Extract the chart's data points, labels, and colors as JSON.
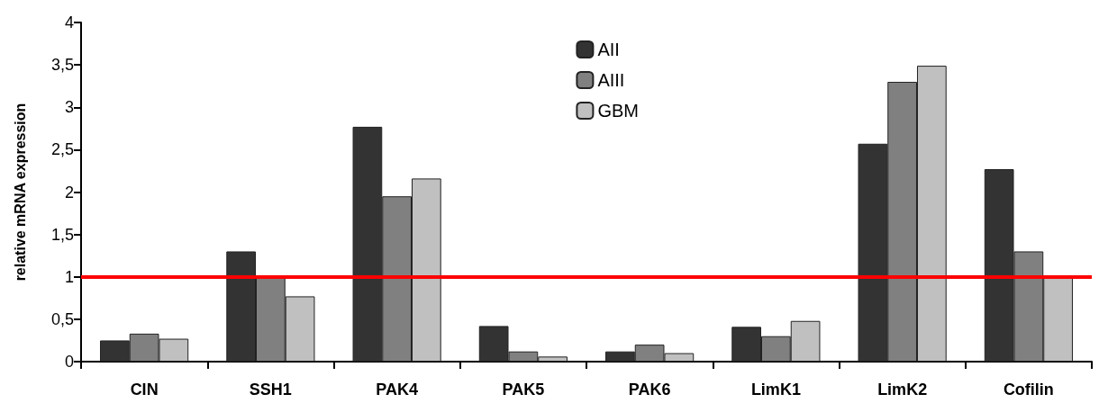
{
  "chart_data": {
    "type": "bar",
    "ylabel": "relative mRNA expression",
    "categories": [
      "CIN",
      "SSH1",
      "PAK4",
      "PAK5",
      "PAK6",
      "LimK1",
      "LimK2",
      "Cofilin"
    ],
    "series": [
      {
        "name": "AII",
        "color": "#333333",
        "values": [
          0.25,
          1.3,
          2.77,
          0.42,
          0.12,
          0.41,
          2.57,
          2.27
        ]
      },
      {
        "name": "AIII",
        "color": "#808080",
        "values": [
          0.33,
          1.0,
          1.95,
          0.12,
          0.2,
          0.3,
          3.3,
          1.3
        ]
      },
      {
        "name": "GBM",
        "color": "#c0c0c0",
        "values": [
          0.27,
          0.77,
          2.16,
          0.06,
          0.1,
          0.48,
          3.49,
          1.0
        ]
      }
    ],
    "ylim": [
      0,
      4
    ],
    "yticks": [
      0,
      {
        "value": 0.5,
        "label": "0,5"
      },
      1,
      {
        "value": 1.5,
        "label": "1,5"
      },
      2,
      {
        "value": 2.5,
        "label": "2,5"
      },
      3,
      {
        "value": 3.5,
        "label": "3,5"
      },
      4
    ],
    "ref_lines": [
      {
        "axis": "y",
        "value": 1,
        "label": null,
        "color": "#ff0000",
        "line_style": "solid"
      }
    ],
    "grid": false,
    "legend": "top"
  }
}
